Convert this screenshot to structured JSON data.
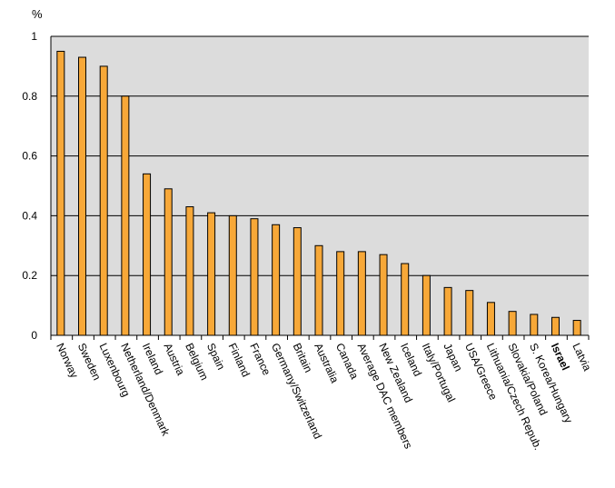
{
  "chart_data": {
    "type": "bar",
    "title": "",
    "xlabel": "",
    "ylabel": "%",
    "ylim": [
      0,
      1
    ],
    "yticks": [
      {
        "value": 0,
        "label": "0"
      },
      {
        "value": 0.2,
        "label": "0.2"
      },
      {
        "value": 0.4,
        "label": "0.4"
      },
      {
        "value": 0.6,
        "label": "0.6"
      },
      {
        "value": 0.8,
        "label": "0.8"
      },
      {
        "value": 1,
        "label": "1"
      }
    ],
    "grid": true,
    "categories": [
      "Norway",
      "Sweden",
      "Luxenbourg",
      "Netherland/Denmark",
      "Ireland",
      "Austria",
      "Belgium",
      "Spain",
      "Finland",
      "France",
      "Germany/Switzerland",
      "Britain",
      "Australia",
      "Canada",
      "Average DAC members",
      "New Zealand",
      "Iceland",
      "Italy/Portugal",
      "Japan",
      "USA/Greece",
      "Lithuania/Czech Repub.",
      "Slovakia/Poland",
      "S. Korea/Hungary",
      "Israel",
      "Latvia"
    ],
    "highlight": "Israel",
    "values": [
      0.95,
      0.93,
      0.9,
      0.8,
      0.54,
      0.49,
      0.43,
      0.41,
      0.4,
      0.39,
      0.37,
      0.36,
      0.3,
      0.28,
      0.28,
      0.27,
      0.24,
      0.2,
      0.16,
      0.15,
      0.11,
      0.08,
      0.07,
      0.06,
      0.05
    ],
    "colors": {
      "bar_fill": "#F7A838",
      "bar_stroke": "#000000",
      "plot_bg": "#DCDCDC",
      "grid": "#000000"
    }
  }
}
